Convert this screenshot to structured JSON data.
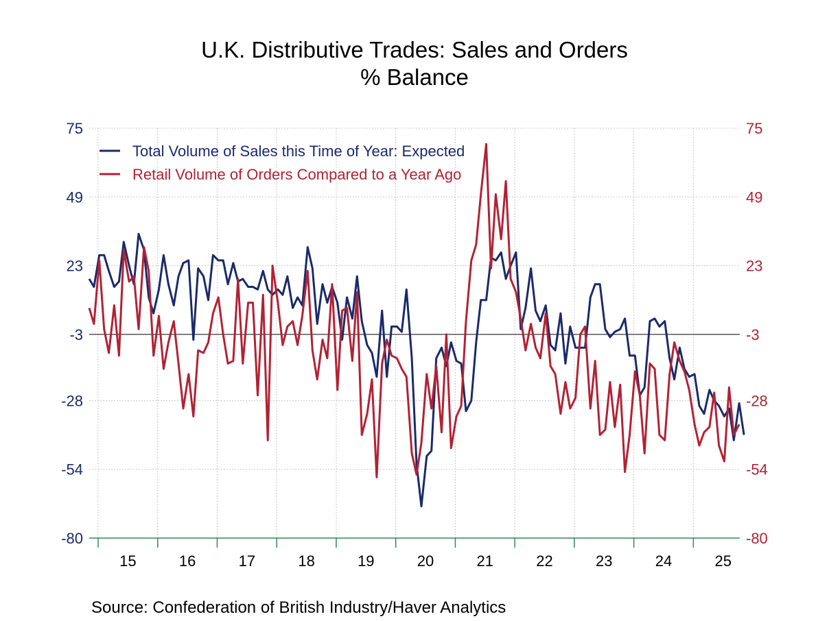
{
  "chart_data": {
    "type": "line",
    "title": "U.K. Distributive Trades: Sales and Orders",
    "subtitle": "% Balance",
    "source": "Source:  Confederation of British Industry/Haver Analytics",
    "xlim": [
      2014.85,
      2025.78
    ],
    "ylim": [
      -80,
      75
    ],
    "y_ticks": [
      75,
      49,
      23,
      -3,
      -28,
      -54,
      -80
    ],
    "y_tick_labels": [
      "75",
      "49",
      "23",
      "-3",
      "-28",
      "-54",
      "-80"
    ],
    "reference_line": -3,
    "x_tick_labels": [
      {
        "label": "15",
        "x": 2015.5
      },
      {
        "label": "16",
        "x": 2016.5
      },
      {
        "label": "17",
        "x": 2017.5
      },
      {
        "label": "18",
        "x": 2018.5
      },
      {
        "label": "19",
        "x": 2019.5
      },
      {
        "label": "20",
        "x": 2020.5
      },
      {
        "label": "21",
        "x": 2021.5
      },
      {
        "label": "22",
        "x": 2022.5
      },
      {
        "label": "23",
        "x": 2023.5
      },
      {
        "label": "24",
        "x": 2024.5
      },
      {
        "label": "25",
        "x": 2025.5
      }
    ],
    "x_tick_marks": [
      2015,
      2016,
      2017,
      2018,
      2019,
      2020,
      2021,
      2022,
      2023,
      2024,
      2025
    ],
    "grid": true,
    "legend_position": "top-left",
    "colors": {
      "axis": "#2e8b57",
      "grid": "#c8c8c8",
      "zero_line": "#000000"
    },
    "series": [
      {
        "name": "Total Volume of Sales this Time of Year: Expected",
        "color": "#1a2a6c",
        "values": [
          [
            2014.85,
            18
          ],
          [
            2014.93,
            15
          ],
          [
            2015.02,
            27
          ],
          [
            2015.1,
            27
          ],
          [
            2015.18,
            21
          ],
          [
            2015.27,
            15
          ],
          [
            2015.35,
            17
          ],
          [
            2015.43,
            32
          ],
          [
            2015.52,
            23
          ],
          [
            2015.6,
            16
          ],
          [
            2015.68,
            35
          ],
          [
            2015.77,
            29
          ],
          [
            2015.85,
            11
          ],
          [
            2015.93,
            5
          ],
          [
            2016.02,
            14
          ],
          [
            2016.1,
            27
          ],
          [
            2016.18,
            16
          ],
          [
            2016.27,
            8
          ],
          [
            2016.35,
            19
          ],
          [
            2016.43,
            24
          ],
          [
            2016.52,
            25
          ],
          [
            2016.6,
            -5
          ],
          [
            2016.68,
            22
          ],
          [
            2016.77,
            19
          ],
          [
            2016.85,
            10
          ],
          [
            2016.93,
            27
          ],
          [
            2017.02,
            25
          ],
          [
            2017.1,
            25
          ],
          [
            2017.18,
            16
          ],
          [
            2017.27,
            24
          ],
          [
            2017.35,
            17
          ],
          [
            2017.43,
            18
          ],
          [
            2017.52,
            15
          ],
          [
            2017.6,
            15
          ],
          [
            2017.68,
            14
          ],
          [
            2017.77,
            21
          ],
          [
            2017.85,
            14
          ],
          [
            2017.93,
            12
          ],
          [
            2018.02,
            14
          ],
          [
            2018.1,
            12
          ],
          [
            2018.18,
            19
          ],
          [
            2018.27,
            7
          ],
          [
            2018.35,
            11
          ],
          [
            2018.43,
            8
          ],
          [
            2018.52,
            30
          ],
          [
            2018.6,
            22
          ],
          [
            2018.68,
            1
          ],
          [
            2018.77,
            16
          ],
          [
            2018.85,
            9
          ],
          [
            2018.93,
            15
          ],
          [
            2019.02,
            9
          ],
          [
            2019.1,
            -5
          ],
          [
            2019.18,
            11
          ],
          [
            2019.27,
            3
          ],
          [
            2019.35,
            19
          ],
          [
            2019.43,
            2
          ],
          [
            2019.52,
            -7
          ],
          [
            2019.6,
            -10
          ],
          [
            2019.68,
            -19
          ],
          [
            2019.77,
            6
          ],
          [
            2019.85,
            -19
          ],
          [
            2019.93,
            0
          ],
          [
            2020.02,
            0
          ],
          [
            2020.1,
            -2
          ],
          [
            2020.18,
            14
          ],
          [
            2020.27,
            -12
          ],
          [
            2020.35,
            -52
          ],
          [
            2020.43,
            -68
          ],
          [
            2020.52,
            -49
          ],
          [
            2020.6,
            -47
          ],
          [
            2020.68,
            -12
          ],
          [
            2020.77,
            -8
          ],
          [
            2020.85,
            -15
          ],
          [
            2020.93,
            -6
          ],
          [
            2021.02,
            -13
          ],
          [
            2021.1,
            -14
          ],
          [
            2021.18,
            -32
          ],
          [
            2021.27,
            -28
          ],
          [
            2021.35,
            -6
          ],
          [
            2021.43,
            10
          ],
          [
            2021.52,
            10
          ],
          [
            2021.6,
            26
          ],
          [
            2021.68,
            25
          ],
          [
            2021.77,
            28
          ],
          [
            2021.85,
            18
          ],
          [
            2021.93,
            23
          ],
          [
            2022.02,
            28
          ],
          [
            2022.1,
            -1
          ],
          [
            2022.18,
            7
          ],
          [
            2022.27,
            22
          ],
          [
            2022.35,
            6
          ],
          [
            2022.43,
            2
          ],
          [
            2022.52,
            8
          ],
          [
            2022.6,
            -7
          ],
          [
            2022.68,
            -9
          ],
          [
            2022.77,
            5
          ],
          [
            2022.85,
            -14
          ],
          [
            2022.93,
            0
          ],
          [
            2023.02,
            -8
          ],
          [
            2023.1,
            -8
          ],
          [
            2023.18,
            -8
          ],
          [
            2023.27,
            11
          ],
          [
            2023.35,
            16
          ],
          [
            2023.43,
            16
          ],
          [
            2023.52,
            -1
          ],
          [
            2023.6,
            -4
          ],
          [
            2023.68,
            -2
          ],
          [
            2023.77,
            -1
          ],
          [
            2023.85,
            3
          ],
          [
            2023.93,
            -11
          ],
          [
            2024.02,
            -11
          ],
          [
            2024.1,
            -26
          ],
          [
            2024.18,
            -23
          ],
          [
            2024.27,
            2
          ],
          [
            2024.35,
            3
          ],
          [
            2024.43,
            0
          ],
          [
            2024.52,
            2
          ],
          [
            2024.6,
            -12
          ],
          [
            2024.68,
            -20
          ],
          [
            2024.77,
            -8
          ],
          [
            2024.85,
            -16
          ],
          [
            2024.93,
            -19
          ],
          [
            2025.02,
            -18
          ],
          [
            2025.1,
            -30
          ],
          [
            2025.18,
            -33
          ],
          [
            2025.27,
            -24
          ],
          [
            2025.35,
            -28
          ],
          [
            2025.43,
            -30
          ],
          [
            2025.52,
            -34
          ],
          [
            2025.6,
            -31
          ],
          [
            2025.68,
            -43
          ],
          [
            2025.77,
            -29
          ],
          [
            2025.85,
            -41
          ]
        ]
      },
      {
        "name": "Retail Volume of Orders Compared to a Year Ago",
        "color": "#b22234",
        "values": [
          [
            2014.85,
            7
          ],
          [
            2014.93,
            1
          ],
          [
            2015.02,
            25
          ],
          [
            2015.1,
            -1
          ],
          [
            2015.18,
            -10
          ],
          [
            2015.27,
            8
          ],
          [
            2015.35,
            -11
          ],
          [
            2015.43,
            29
          ],
          [
            2015.52,
            17
          ],
          [
            2015.6,
            19
          ],
          [
            2015.68,
            -1
          ],
          [
            2015.77,
            30
          ],
          [
            2015.85,
            21
          ],
          [
            2015.93,
            -11
          ],
          [
            2016.02,
            4
          ],
          [
            2016.1,
            -16
          ],
          [
            2016.18,
            -6
          ],
          [
            2016.27,
            2
          ],
          [
            2016.35,
            -14
          ],
          [
            2016.43,
            -31
          ],
          [
            2016.52,
            -18
          ],
          [
            2016.6,
            -34
          ],
          [
            2016.68,
            -9
          ],
          [
            2016.77,
            -10
          ],
          [
            2016.85,
            -6
          ],
          [
            2016.93,
            5
          ],
          [
            2017.02,
            11
          ],
          [
            2017.1,
            -3
          ],
          [
            2017.18,
            -14
          ],
          [
            2017.27,
            -13
          ],
          [
            2017.35,
            18
          ],
          [
            2017.43,
            -14
          ],
          [
            2017.52,
            9
          ],
          [
            2017.6,
            9
          ],
          [
            2017.68,
            -26
          ],
          [
            2017.77,
            12
          ],
          [
            2017.85,
            -43
          ],
          [
            2017.93,
            23
          ],
          [
            2018.02,
            9
          ],
          [
            2018.1,
            -7
          ],
          [
            2018.18,
            0
          ],
          [
            2018.27,
            2
          ],
          [
            2018.35,
            -7
          ],
          [
            2018.43,
            4
          ],
          [
            2018.52,
            21
          ],
          [
            2018.6,
            -9
          ],
          [
            2018.68,
            -20
          ],
          [
            2018.77,
            -5
          ],
          [
            2018.85,
            -12
          ],
          [
            2018.93,
            16
          ],
          [
            2019.02,
            -24
          ],
          [
            2019.1,
            6
          ],
          [
            2019.18,
            7
          ],
          [
            2019.27,
            -13
          ],
          [
            2019.35,
            13
          ],
          [
            2019.43,
            -41
          ],
          [
            2019.52,
            -33
          ],
          [
            2019.6,
            -20
          ],
          [
            2019.68,
            -57
          ],
          [
            2019.77,
            -14
          ],
          [
            2019.85,
            -5
          ],
          [
            2019.93,
            -11
          ],
          [
            2020.02,
            -12
          ],
          [
            2020.1,
            -16
          ],
          [
            2020.18,
            -19
          ],
          [
            2020.27,
            -48
          ],
          [
            2020.35,
            -56
          ],
          [
            2020.43,
            -44
          ],
          [
            2020.52,
            -18
          ],
          [
            2020.6,
            -31
          ],
          [
            2020.68,
            -15
          ],
          [
            2020.77,
            -40
          ],
          [
            2020.85,
            -3
          ],
          [
            2020.93,
            -46
          ],
          [
            2021.02,
            -34
          ],
          [
            2021.1,
            -30
          ],
          [
            2021.18,
            2
          ],
          [
            2021.27,
            25
          ],
          [
            2021.35,
            31
          ],
          [
            2021.43,
            50
          ],
          [
            2021.52,
            69
          ],
          [
            2021.6,
            22
          ],
          [
            2021.68,
            50
          ],
          [
            2021.77,
            33
          ],
          [
            2021.85,
            55
          ],
          [
            2021.93,
            18
          ],
          [
            2022.02,
            13
          ],
          [
            2022.1,
            3
          ],
          [
            2022.18,
            -9
          ],
          [
            2022.27,
            1
          ],
          [
            2022.35,
            -8
          ],
          [
            2022.43,
            -12
          ],
          [
            2022.52,
            5
          ],
          [
            2022.6,
            -15
          ],
          [
            2022.68,
            -18
          ],
          [
            2022.77,
            -33
          ],
          [
            2022.85,
            -21
          ],
          [
            2022.93,
            -31
          ],
          [
            2023.02,
            -27
          ],
          [
            2023.1,
            -3
          ],
          [
            2023.18,
            0
          ],
          [
            2023.27,
            -31
          ],
          [
            2023.35,
            -13
          ],
          [
            2023.43,
            -41
          ],
          [
            2023.52,
            -39
          ],
          [
            2023.6,
            -21
          ],
          [
            2023.68,
            -38
          ],
          [
            2023.77,
            -22
          ],
          [
            2023.85,
            -55
          ],
          [
            2023.93,
            -41
          ],
          [
            2024.02,
            -17
          ],
          [
            2024.1,
            -26
          ],
          [
            2024.18,
            -48
          ],
          [
            2024.27,
            -14
          ],
          [
            2024.35,
            -16
          ],
          [
            2024.43,
            -41
          ],
          [
            2024.52,
            -43
          ],
          [
            2024.6,
            -18
          ],
          [
            2024.68,
            -6
          ],
          [
            2024.77,
            -13
          ],
          [
            2024.85,
            -17
          ],
          [
            2024.93,
            -24
          ],
          [
            2025.02,
            -37
          ],
          [
            2025.1,
            -45
          ],
          [
            2025.18,
            -40
          ],
          [
            2025.27,
            -38
          ],
          [
            2025.35,
            -25
          ],
          [
            2025.43,
            -45
          ],
          [
            2025.52,
            -51
          ],
          [
            2025.6,
            -23
          ],
          [
            2025.68,
            -41
          ],
          [
            2025.77,
            -37
          ]
        ]
      }
    ]
  }
}
